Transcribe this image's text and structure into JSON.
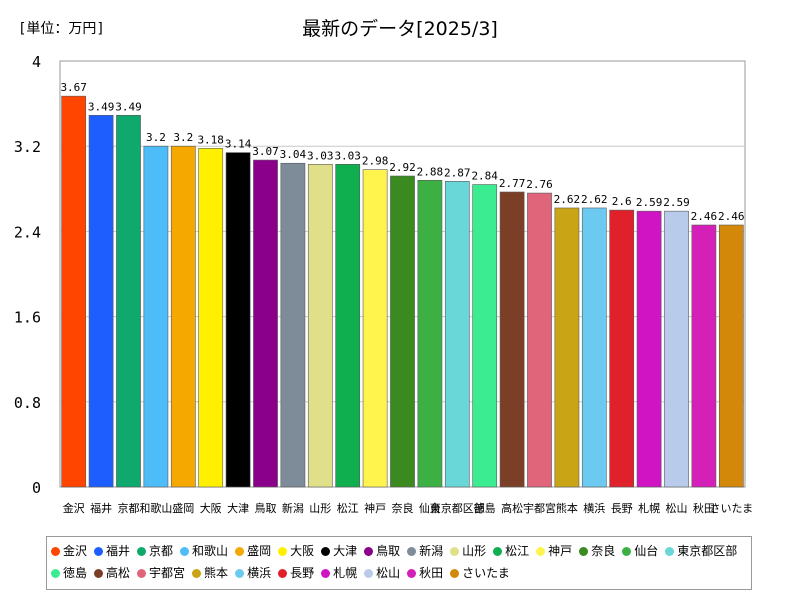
{
  "unit_label": "[単位：万円]",
  "chart_data": {
    "type": "bar",
    "title": "最新のデータ[2025/3]",
    "ylim": [
      0,
      4
    ],
    "yticks": [
      0,
      0.8,
      1.6,
      2.4,
      3.2,
      4
    ],
    "categories": [
      "金沢",
      "福井",
      "京都",
      "和歌山",
      "盛岡",
      "大阪",
      "大津",
      "鳥取",
      "新潟",
      "山形",
      "松江",
      "神戸",
      "奈良",
      "仙台",
      "東京都区部",
      "徳島",
      "高松",
      "宇都宮",
      "熊本",
      "横浜",
      "長野",
      "札幌",
      "松山",
      "秋田",
      "さいたま"
    ],
    "values": [
      3.67,
      3.49,
      3.49,
      3.2,
      3.2,
      3.18,
      3.14,
      3.07,
      3.04,
      3.03,
      3.03,
      2.98,
      2.92,
      2.88,
      2.87,
      2.84,
      2.77,
      2.76,
      2.62,
      2.62,
      2.6,
      2.59,
      2.59,
      2.46,
      2.46
    ],
    "value_labels": [
      "3.67",
      "3.49",
      "3.49",
      "3.2",
      "3.2",
      "3.18",
      "3.14",
      "3.07",
      "3.04",
      "3.03",
      "3.03",
      "2.98",
      "2.92",
      "2.88",
      "2.87",
      "2.84",
      "2.77",
      "2.76",
      "2.62",
      "2.62",
      "2.6",
      "2.59",
      "2.59",
      "2.46",
      "2.46"
    ],
    "colors": [
      "#ff4500",
      "#1e5eff",
      "#0fa96e",
      "#4dbcf7",
      "#f5a800",
      "#fff000",
      "#000000",
      "#8b008b",
      "#7e8b99",
      "#e0e08a",
      "#0fae4e",
      "#fff44d",
      "#3a8a1f",
      "#3cb043",
      "#69d7d7",
      "#3cec90",
      "#7b3f28",
      "#e0647a",
      "#c9a414",
      "#6ccaf0",
      "#e0202a",
      "#d014c4",
      "#b9cbeb",
      "#d420b8",
      "#d4880a"
    ],
    "grid": true,
    "legend_position": "bottom"
  }
}
